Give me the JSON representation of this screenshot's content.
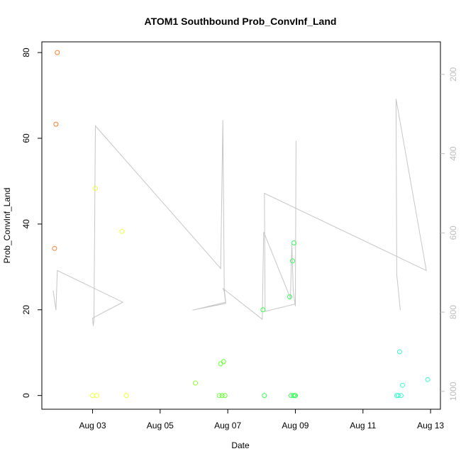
{
  "chart_data": {
    "type": "scatter",
    "title": "ATOM1 Southbound Prob_ConvInf_Land",
    "xlabel": "Date",
    "ylabel": "Prob_ConvInf_Land",
    "x_ticks": [
      "Aug 03",
      "Aug 05",
      "Aug 07",
      "Aug 09",
      "Aug 11",
      "Aug 13"
    ],
    "xlim": [
      "2012-08-01T12:00",
      "2012-08-13T07:00"
    ],
    "ylim": [
      -3.2,
      82.5
    ],
    "y_ticks": [
      0,
      20,
      40,
      60,
      80
    ],
    "y2_ticks": [
      200,
      400,
      600,
      800,
      1000
    ],
    "y2lim": [
      1045,
      118
    ],
    "grid": false,
    "points": [
      {
        "x": "2012-08-01T21:00",
        "y": 34.3,
        "color": "#ff7f2a"
      },
      {
        "x": "2012-08-01T22:00",
        "y": 63.3,
        "color": "#ff7f2a"
      },
      {
        "x": "2012-08-01T23:00",
        "y": 80.0,
        "color": "#ff7f2a"
      },
      {
        "x": "2012-08-03T00:00",
        "y": 0.0,
        "color": "#eeff33"
      },
      {
        "x": "2012-08-03T02:00",
        "y": 48.3,
        "color": "#eeff33"
      },
      {
        "x": "2012-08-03T03:00",
        "y": 0.0,
        "color": "#eeff33"
      },
      {
        "x": "2012-08-03T21:00",
        "y": 38.3,
        "color": "#eeff33"
      },
      {
        "x": "2012-08-04T00:00",
        "y": 0.0,
        "color": "#eeff33"
      },
      {
        "x": "2012-08-06T01:00",
        "y": 2.9,
        "color": "#99ff33"
      },
      {
        "x": "2012-08-06T18:00",
        "y": 0.0,
        "color": "#66ff33"
      },
      {
        "x": "2012-08-06T19:00",
        "y": 7.4,
        "color": "#66ff33"
      },
      {
        "x": "2012-08-06T20:00",
        "y": 0.0,
        "color": "#66ff33"
      },
      {
        "x": "2012-08-06T21:00",
        "y": 7.9,
        "color": "#66ff33"
      },
      {
        "x": "2012-08-06T22:00",
        "y": 0.0,
        "color": "#66ff33"
      },
      {
        "x": "2012-08-08T01:00",
        "y": 20.0,
        "color": "#33ff44"
      },
      {
        "x": "2012-08-08T02:00",
        "y": 0.0,
        "color": "#33ff44"
      },
      {
        "x": "2012-08-08T20:00",
        "y": 23.0,
        "color": "#33ff55"
      },
      {
        "x": "2012-08-08T21:00",
        "y": 0.0,
        "color": "#33ff55"
      },
      {
        "x": "2012-08-08T22:00",
        "y": 31.4,
        "color": "#33ff55"
      },
      {
        "x": "2012-08-08T22:30",
        "y": 0.0,
        "color": "#33ff55"
      },
      {
        "x": "2012-08-08T23:00",
        "y": 35.6,
        "color": "#33ff55"
      },
      {
        "x": "2012-08-08T23:30",
        "y": 0.0,
        "color": "#33ff55"
      },
      {
        "x": "2012-08-09T00:00",
        "y": 0.0,
        "color": "#33ff55"
      },
      {
        "x": "2012-08-12T00:00",
        "y": 0.0,
        "color": "#33ffcc"
      },
      {
        "x": "2012-08-12T01:00",
        "y": 0.0,
        "color": "#33ffcc"
      },
      {
        "x": "2012-08-12T02:00",
        "y": 10.2,
        "color": "#33ffcc"
      },
      {
        "x": "2012-08-12T03:00",
        "y": 0.0,
        "color": "#33ffcc"
      },
      {
        "x": "2012-08-12T04:00",
        "y": 2.4,
        "color": "#33ffcc"
      },
      {
        "x": "2012-08-12T22:00",
        "y": 3.7,
        "color": "#33ffcc"
      }
    ],
    "y2_line": {
      "color": "#c6c6c6",
      "x": [
        "2012-08-01T20:00",
        "2012-08-01T22:00",
        "2012-08-01T23:00",
        "2012-08-03T21:30",
        "2012-08-03T00:00",
        "2012-08-03T00:30",
        "2012-08-03T01:00",
        "2012-08-03T02:00",
        "2012-08-06T19:00",
        "2012-08-06T20:30",
        "2012-08-06T21:30",
        "2012-08-06T22:30",
        "2012-08-05T23:00",
        "2012-08-06T22:30",
        "2012-08-06T21:30",
        "2012-08-06T20:30",
        "2012-08-08T00:30",
        "2012-08-08T01:30",
        "2012-08-08T20:30",
        "2012-08-08T21:30",
        "2012-08-08T22:30",
        "2012-08-08T23:30",
        "2012-08-09T00:00",
        "2012-08-09T00:30",
        "2012-08-09T00:00",
        "2012-08-08T23:30",
        "2012-08-08T02:30",
        "2012-08-08T02:00",
        "2012-08-12T21:00",
        "2012-08-11T23:30",
        "2012-08-12T00:00",
        "2012-08-12T01:00",
        "2012-08-12T02:30"
      ],
      "y": [
        745,
        795,
        695,
        775,
        815,
        835,
        818,
        330,
        690,
        315,
        740,
        775,
        795,
        778,
        748,
        740,
        818,
        598,
        765,
        628,
        748,
        772,
        785,
        368,
        770,
        780,
        798,
        500,
        695,
        262,
        705,
        740,
        795
      ]
    }
  }
}
